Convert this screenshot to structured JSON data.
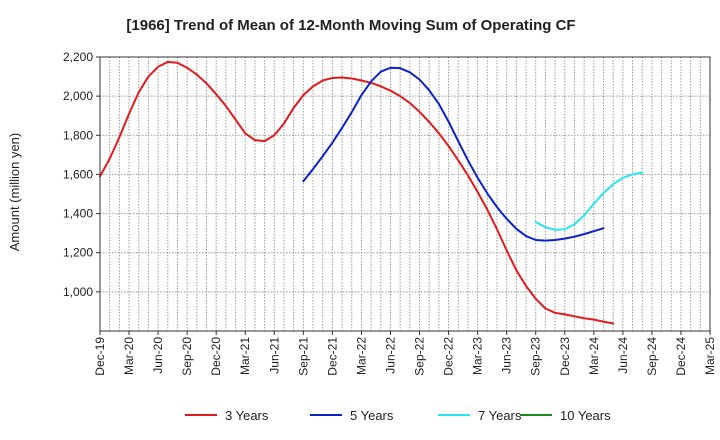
{
  "chart_data": {
    "type": "line",
    "title": "[1966]  Trend of Mean of 12-Month Moving Sum of Operating CF",
    "xlabel": "",
    "ylabel": "Amount (million yen)",
    "ylim": [
      800,
      2200
    ],
    "y_ticks": [
      1000,
      1200,
      1400,
      1600,
      1800,
      2000,
      2200
    ],
    "y_tick_labels": [
      "1,000",
      "1,200",
      "1,400",
      "1,600",
      "1,800",
      "2,000",
      "2,200"
    ],
    "x_tick_labels": [
      "Dec-19",
      "Mar-20",
      "Jun-20",
      "Sep-20",
      "Dec-20",
      "Mar-21",
      "Jun-21",
      "Sep-21",
      "Dec-21",
      "Mar-22",
      "Jun-22",
      "Sep-22",
      "Dec-22",
      "Mar-23",
      "Jun-23",
      "Sep-23",
      "Dec-23",
      "Mar-24",
      "Jun-24",
      "Sep-24",
      "Dec-24",
      "Mar-25"
    ],
    "grid": true,
    "legend_position": "bottom",
    "series": [
      {
        "name": "3 Years",
        "color": "#e31a1c",
        "start_month": 0,
        "values": [
          1590,
          1680,
          1790,
          1910,
          2020,
          2100,
          2150,
          2175,
          2170,
          2145,
          2110,
          2065,
          2010,
          1950,
          1880,
          1810,
          1775,
          1770,
          1800,
          1860,
          1940,
          2005,
          2050,
          2080,
          2093,
          2095,
          2090,
          2080,
          2068,
          2050,
          2028,
          2000,
          1965,
          1920,
          1868,
          1810,
          1745,
          1672,
          1595,
          1510,
          1420,
          1320,
          1212,
          1110,
          1030,
          965,
          915,
          893,
          885,
          875,
          865,
          858,
          848,
          838
        ]
      },
      {
        "name": "5 Years",
        "color": "#0a22c9",
        "start_month": 21,
        "values": [
          1565,
          1628,
          1693,
          1762,
          1838,
          1918,
          2005,
          2075,
          2125,
          2145,
          2143,
          2122,
          2085,
          2030,
          1960,
          1870,
          1770,
          1672,
          1583,
          1503,
          1433,
          1373,
          1322,
          1285,
          1265,
          1262,
          1265,
          1272,
          1282,
          1295,
          1310,
          1325
        ]
      },
      {
        "name": "7 Years",
        "color": "#27e6f0",
        "start_month": 45,
        "values": [
          1357,
          1330,
          1317,
          1320,
          1345,
          1390,
          1450,
          1505,
          1550,
          1583,
          1600,
          1610
        ]
      },
      {
        "name": "10 Years",
        "color": "#1a8a1a",
        "start_month": 0,
        "values": []
      }
    ]
  }
}
